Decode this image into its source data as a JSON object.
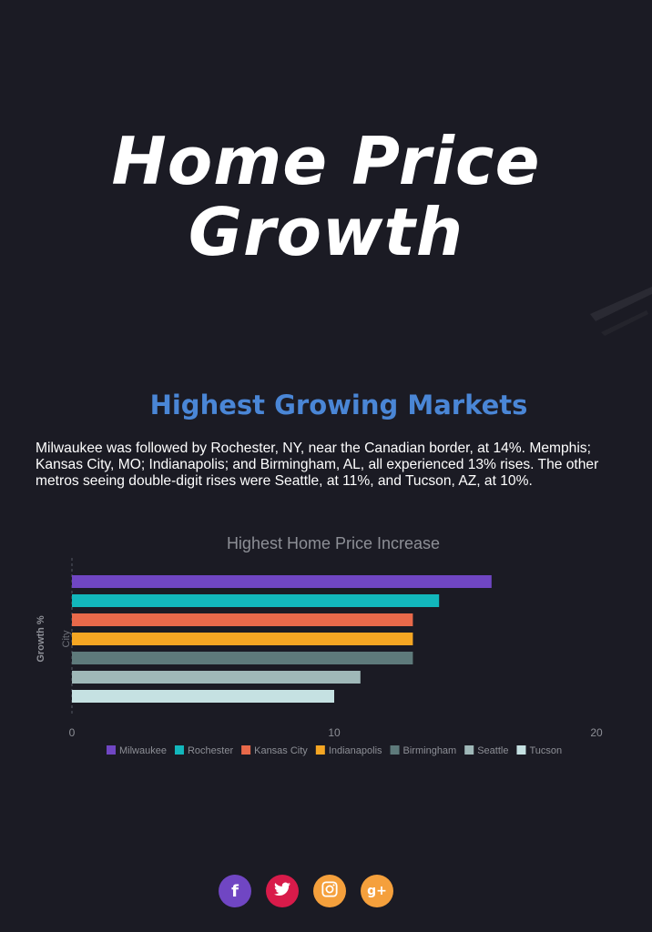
{
  "hero": {
    "line1": "Home Price",
    "line2": "Growth"
  },
  "section": {
    "title": "Highest Growing Markets",
    "body": "Milwaukee was followed by Rochester, NY, near the Canadian border, at 14%. Memphis; Kansas City, MO; Indianapolis; and Birmingham, AL, all experienced 13% rises. The other metros seeing double-digit rises were Seattle, at 11%, and Tucson, AZ, at 10%."
  },
  "chart_data": {
    "type": "bar",
    "orientation": "horizontal",
    "title": "Highest Home Price Increase",
    "xlabel": "",
    "ylabel": "City",
    "ylabel_outer": "Growth %",
    "xlim": [
      0,
      20
    ],
    "xticks": [
      "0",
      "10",
      "20"
    ],
    "legend_position": "bottom",
    "series": [
      {
        "name": "Milwaukee",
        "value": 16,
        "color": "#7046c3"
      },
      {
        "name": "Rochester",
        "value": 14,
        "color": "#12b7bc"
      },
      {
        "name": "Kansas City",
        "value": 13,
        "color": "#e8694a"
      },
      {
        "name": "Indianapolis",
        "value": 13,
        "color": "#f5a623"
      },
      {
        "name": "Birmingham",
        "value": 13,
        "color": "#5e7a7b"
      },
      {
        "name": "Seattle",
        "value": 11,
        "color": "#9fb8b8"
      },
      {
        "name": "Tucson",
        "value": 10,
        "color": "#c5e1e2"
      }
    ]
  },
  "social": [
    {
      "icon": "facebook-icon",
      "glyph": "f",
      "color": "#7046c3"
    },
    {
      "icon": "twitter-icon",
      "glyph": "🐦",
      "color": "#d81b4a"
    },
    {
      "icon": "instagram-icon",
      "glyph": "◙",
      "color": "#f5a03c"
    },
    {
      "icon": "google-plus-icon",
      "glyph": "g+",
      "color": "#f5a03c"
    }
  ]
}
